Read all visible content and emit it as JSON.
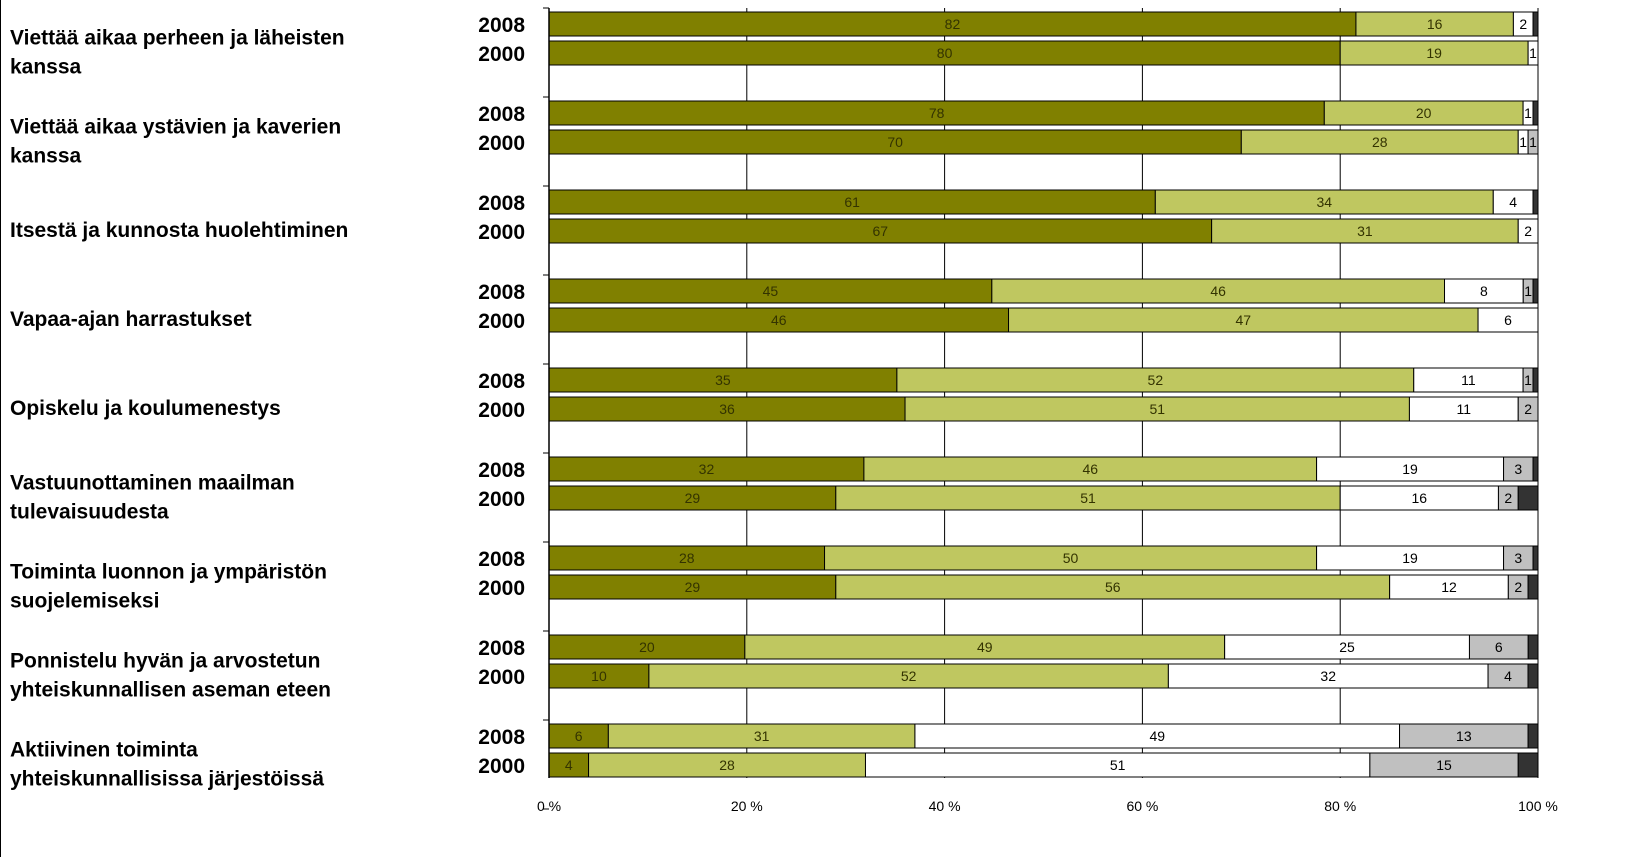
{
  "chart_data": {
    "type": "bar",
    "orientation": "horizontal",
    "stacked": true,
    "percent_stacked": true,
    "grid": true,
    "legend": "none",
    "xlim": [
      0,
      100
    ],
    "x_ticks": [
      "0 %",
      "20 %",
      "40 %",
      "60 %",
      "80 %",
      "100 %"
    ],
    "segment_colors": [
      "#808000",
      "#bfc760",
      "#ffffff",
      "#c0c0c0",
      "#333333"
    ],
    "segment_label_colors": [
      "#333300",
      "#333300",
      "#000000",
      "#000000",
      "#000000"
    ],
    "groups": [
      {
        "label": "Viettää aikaa perheen ja läheisten kanssa",
        "rows": [
          {
            "year": "2008",
            "values": [
              82,
              16,
              2,
              0,
              0.5
            ]
          },
          {
            "year": "2000",
            "values": [
              80,
              19,
              1,
              0,
              0
            ]
          }
        ]
      },
      {
        "label": "Viettää aikaa ystävien ja kaverien kanssa",
        "rows": [
          {
            "year": "2008",
            "values": [
              78,
              20,
              1,
              0,
              0.5
            ]
          },
          {
            "year": "2000",
            "values": [
              70,
              28,
              1,
              1,
              0
            ]
          }
        ]
      },
      {
        "label": "Itsestä ja kunnosta huolehtiminen",
        "rows": [
          {
            "year": "2008",
            "values": [
              61,
              34,
              4,
              0,
              0.5
            ]
          },
          {
            "year": "2000",
            "values": [
              67,
              31,
              2,
              0,
              0
            ]
          }
        ]
      },
      {
        "label": "Vapaa-ajan harrastukset",
        "rows": [
          {
            "year": "2008",
            "values": [
              45,
              46,
              8,
              1,
              0.5
            ]
          },
          {
            "year": "2000",
            "values": [
              46,
              47,
              6,
              0,
              0
            ]
          }
        ]
      },
      {
        "label": "Opiskelu ja koulumenestys",
        "rows": [
          {
            "year": "2008",
            "values": [
              35,
              52,
              11,
              1,
              0.5
            ]
          },
          {
            "year": "2000",
            "values": [
              36,
              51,
              11,
              2,
              0
            ]
          }
        ]
      },
      {
        "label": "Vastuunottaminen maailman tulevaisuudesta",
        "rows": [
          {
            "year": "2008",
            "values": [
              32,
              46,
              19,
              3,
              0.5
            ]
          },
          {
            "year": "2000",
            "values": [
              29,
              51,
              16,
              2,
              2
            ]
          }
        ]
      },
      {
        "label": "Toiminta luonnon ja ympäristön suojelemiseksi",
        "rows": [
          {
            "year": "2008",
            "values": [
              28,
              50,
              19,
              3,
              0.5
            ]
          },
          {
            "year": "2000",
            "values": [
              29,
              56,
              12,
              2,
              1
            ]
          }
        ]
      },
      {
        "label": "Ponnistelu hyvän ja arvostetun yhteiskunnallisen aseman eteen",
        "rows": [
          {
            "year": "2008",
            "values": [
              20,
              49,
              25,
              6,
              1
            ]
          },
          {
            "year": "2000",
            "values": [
              10,
              52,
              32,
              4,
              1
            ]
          }
        ]
      },
      {
        "label": "Aktiivinen toiminta yhteiskunnallisissa järjestöissä",
        "rows": [
          {
            "year": "2008",
            "values": [
              6,
              31,
              49,
              13,
              1
            ]
          },
          {
            "year": "2000",
            "values": [
              4,
              28,
              51,
              15,
              2
            ]
          }
        ]
      }
    ]
  }
}
